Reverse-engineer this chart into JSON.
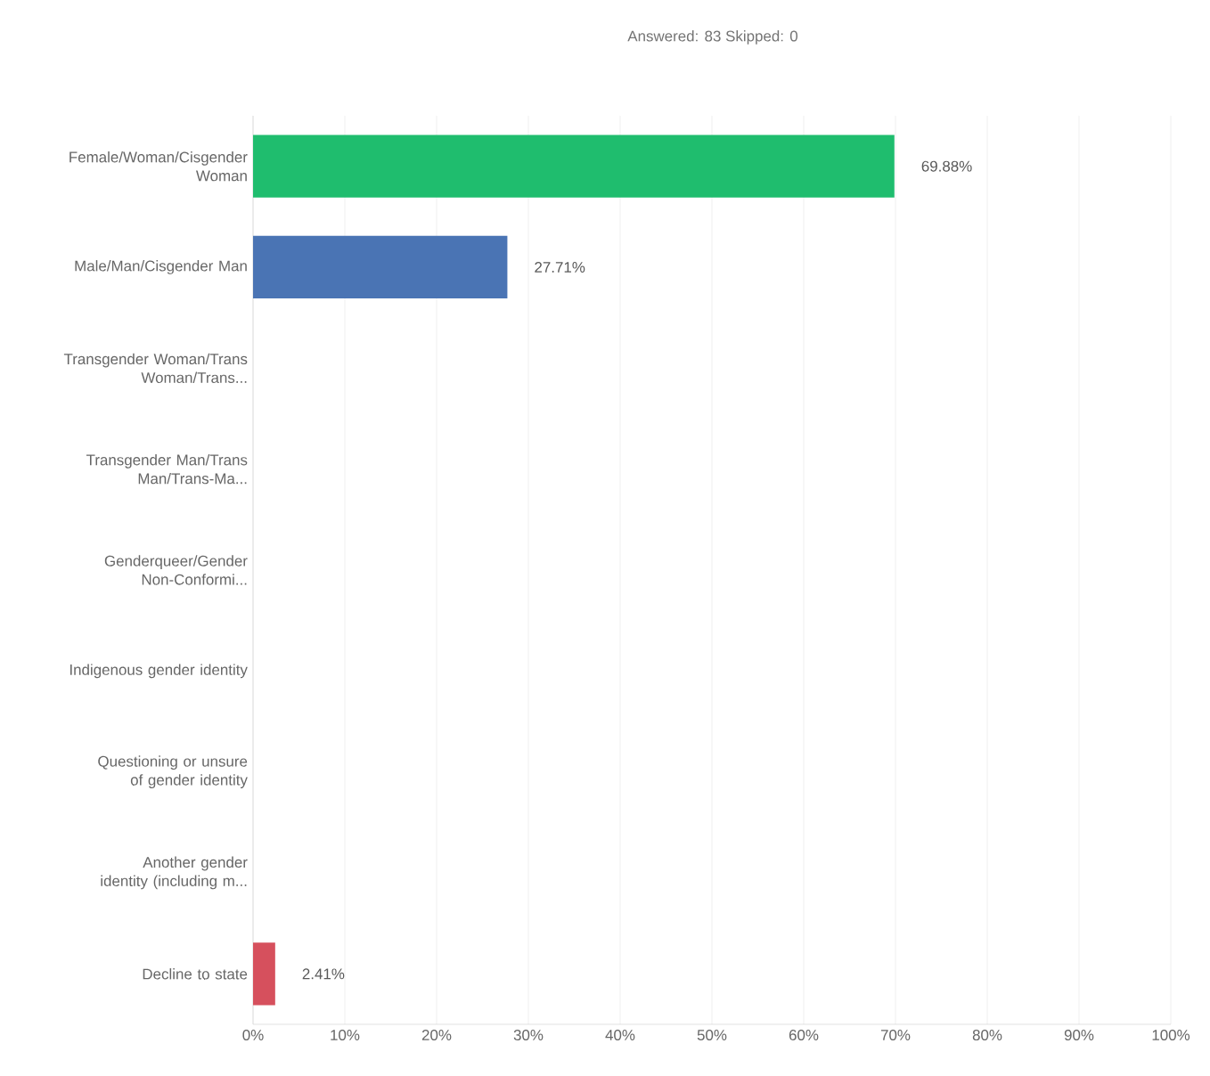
{
  "chart_data": {
    "type": "bar",
    "orientation": "horizontal",
    "title": "Answered: 83 Skipped: 0",
    "categories": [
      "Female/Woman/Cisgender Woman",
      "Male/Man/Cisgender Man",
      "Transgender Woman/Trans Woman/Trans...",
      "Transgender Man/Trans Man/Trans-Ma...",
      "Genderqueer/Gender Non-Conformi...",
      "Indigenous gender identity",
      "Questioning or unsure of gender identity",
      "Another gender identity (including m...",
      "Decline to state"
    ],
    "values": [
      69.88,
      27.71,
      0,
      0,
      0,
      0,
      0,
      0,
      2.41
    ],
    "value_labels": [
      "69.88%",
      "27.71%",
      null,
      null,
      null,
      null,
      null,
      null,
      "2.41%"
    ],
    "colors": [
      "#1fbd6e",
      "#4a74b4",
      "#1fbd6e",
      "#1fbd6e",
      "#1fbd6e",
      "#1fbd6e",
      "#1fbd6e",
      "#1fbd6e",
      "#d6505d"
    ],
    "xlim": [
      0,
      100
    ],
    "xticks": [
      {
        "value": 0,
        "label": "0%"
      },
      {
        "value": 10,
        "label": "10%"
      },
      {
        "value": 20,
        "label": "20%"
      },
      {
        "value": 30,
        "label": "30%"
      },
      {
        "value": 40,
        "label": "40%"
      },
      {
        "value": 50,
        "label": "50%"
      },
      {
        "value": 60,
        "label": "60%"
      },
      {
        "value": 70,
        "label": "70%"
      },
      {
        "value": 80,
        "label": "80%"
      },
      {
        "value": 90,
        "label": "90%"
      },
      {
        "value": 100,
        "label": "100%"
      }
    ],
    "grid": "x"
  }
}
